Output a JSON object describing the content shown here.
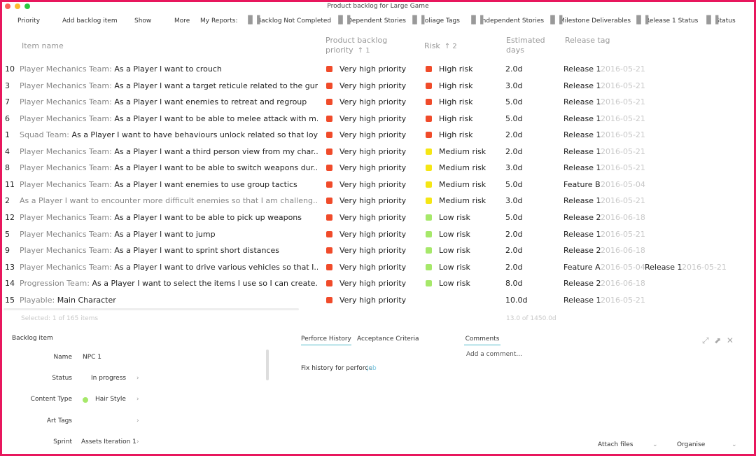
{
  "header": {
    "title": "Product backlog for Large Game"
  },
  "toolbar": [
    "Priority",
    "Add backlog item",
    "Show",
    "More",
    "My Reports:",
    "Backlog Not Completed",
    "Dependent Stories",
    "Foliage Tags",
    "Independent Stories",
    "Milestone Deliverables",
    "Release 1 Status",
    "Status"
  ],
  "table": {
    "columns": [
      {
        "label": "Item name"
      },
      {
        "label": "Product backlog priority",
        "sort": "↑ 1"
      },
      {
        "label": "Risk",
        "sort": "↑ 2"
      },
      {
        "label": "Estimated days"
      },
      {
        "label": "Release tag"
      }
    ],
    "rows": [
      {
        "id": "10",
        "team": "Player Mechanics Team:",
        "text": "As a Player I want to crouch",
        "priority": "Very high priority",
        "risk": "High risk",
        "risk_color": "#f04b2a",
        "days": "2.0d",
        "tags": [
          {
            "name": "Release 1",
            "date": "2016-05-21"
          }
        ]
      },
      {
        "id": "3",
        "team": "Player Mechanics Team:",
        "text": "As a Player I want a target reticule related to the gun's spre...",
        "priority": "Very high priority",
        "risk": "High risk",
        "risk_color": "#f04b2a",
        "days": "3.0d",
        "tags": [
          {
            "name": "Release 1",
            "date": "2016-05-21"
          }
        ]
      },
      {
        "id": "7",
        "team": "Player Mechanics Team:",
        "text": "As a Player I want enemies to retreat and regroup",
        "priority": "Very high priority",
        "risk": "High risk",
        "risk_color": "#f04b2a",
        "days": "5.0d",
        "tags": [
          {
            "name": "Release 1",
            "date": "2016-05-21"
          }
        ]
      },
      {
        "id": "6",
        "team": "Player Mechanics Team:",
        "text": "As a Player I want to be able to melee attack with m...",
        "priority": "Very high priority",
        "risk": "High risk",
        "risk_color": "#f04b2a",
        "days": "5.0d",
        "tags": [
          {
            "name": "Release 1",
            "date": "2016-05-21"
          }
        ]
      },
      {
        "id": "1",
        "team": "Squad Team:",
        "text": "As a Player I want to have behaviours unlock related so that loyalty rat...",
        "priority": "Very high priority",
        "risk": "High risk",
        "risk_color": "#f04b2a",
        "days": "2.0d",
        "tags": [
          {
            "name": "Release 1",
            "date": "2016-05-21"
          }
        ]
      },
      {
        "id": "4",
        "team": "Player Mechanics Team:",
        "text": "As a Player I want a third person view from my char...",
        "priority": "Very high priority",
        "risk": "Medium risk",
        "risk_color": "#f5e614",
        "days": "2.0d",
        "tags": [
          {
            "name": "Release 1",
            "date": "2016-05-21"
          }
        ]
      },
      {
        "id": "8",
        "team": "Player Mechanics Team:",
        "text": "As a Player I want to be able to switch weapons dur...",
        "priority": "Very high priority",
        "risk": "Medium risk",
        "risk_color": "#f5e614",
        "days": "3.0d",
        "tags": [
          {
            "name": "Release 1",
            "date": "2016-05-21"
          }
        ]
      },
      {
        "id": "11",
        "team": "Player Mechanics Team:",
        "text": "As a Player I want enemies to use group tactics",
        "priority": "Very high priority",
        "risk": "Medium risk",
        "risk_color": "#f5e614",
        "days": "5.0d",
        "tags": [
          {
            "name": "Feature B",
            "date": "2016-05-04"
          }
        ]
      },
      {
        "id": "2",
        "text": "As a Player I want to encounter more difficult enemies so that I am challeng...",
        "priority": "Very high priority",
        "risk": "Medium risk",
        "risk_color": "#f5e614",
        "days": "3.0d",
        "tags": [
          {
            "name": "Release 1",
            "date": "2016-05-21"
          }
        ]
      },
      {
        "id": "12",
        "team": "Player Mechanics Team:",
        "text": "As a Player I want to be able to pick up weapons",
        "priority": "Very high priority",
        "risk": "Low risk",
        "risk_color": "#a6e86a",
        "days": "5.0d",
        "tags": [
          {
            "name": "Release 2",
            "date": "2016-06-18"
          }
        ]
      },
      {
        "id": "5",
        "team": "Player Mechanics Team:",
        "text": "As a Player I want to jump",
        "priority": "Very high priority",
        "risk": "Low risk",
        "risk_color": "#a6e86a",
        "days": "2.0d",
        "tags": [
          {
            "name": "Release 1",
            "date": "2016-05-21"
          }
        ]
      },
      {
        "id": "9",
        "team": "Player Mechanics Team:",
        "text": "As a Player I want to sprint short distances",
        "priority": "Very high priority",
        "risk": "Low risk",
        "risk_color": "#a6e86a",
        "days": "2.0d",
        "tags": [
          {
            "name": "Release 2",
            "date": "2016-06-18"
          }
        ]
      },
      {
        "id": "13",
        "team": "Player Mechanics Team:",
        "text": "As a Player I want to drive various vehicles so that I...",
        "priority": "Very high priority",
        "risk": "Low risk",
        "risk_color": "#a6e86a",
        "days": "2.0d",
        "tags": [
          {
            "name": "Feature A",
            "date": "2016-05-04"
          },
          {
            "name": "Release 1",
            "date": "2016-05-21"
          }
        ]
      },
      {
        "id": "14",
        "team": "Progression Team:",
        "text": "As a Player I want to select the items I use so I can create...",
        "priority": "Very high priority",
        "risk": "Low risk",
        "risk_color": "#a6e86a",
        "days": "8.0d",
        "tags": [
          {
            "name": "Release 2",
            "date": "2016-06-18"
          }
        ]
      },
      {
        "id": "15",
        "team": "Playable:",
        "text": "Main Character",
        "priority": "Very high priority",
        "days": "10.0d",
        "tags": [
          {
            "name": "Release 1",
            "date": "2016-05-21"
          }
        ]
      }
    ],
    "priority_color": "#f04b2a",
    "footer": {
      "selected": "Selected: 1 of 165 items",
      "total": "13.0 of 1450.0d"
    }
  },
  "detail": {
    "title": "Backlog item",
    "fields": [
      {
        "label": "Name",
        "value": "NPC 1"
      },
      {
        "label": "Status",
        "value": "In progress"
      },
      {
        "label": "Content Type",
        "value": "Hair Style",
        "dot": "#a6e86a"
      },
      {
        "label": "Art Tags"
      },
      {
        "label": "Sprint",
        "value": "Assets Iteration 1"
      }
    ]
  },
  "history": {
    "tabs": [
      "Perforce History",
      "Acceptance Criteria"
    ],
    "text": "Fix history for perforce",
    "link": "job"
  },
  "comments": {
    "tab": "Comments",
    "placeholder": "Add a comment...",
    "attach": "Attach files",
    "organise": "Organise"
  }
}
